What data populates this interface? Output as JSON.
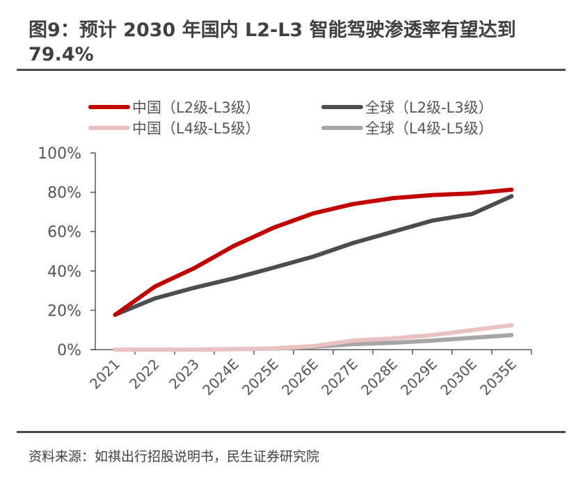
{
  "title": "图9：预计 2030 年国内 L2-L3 智能驾驶渗透率有望达到 79.4%",
  "source": "资料来源：如祺出行招股说明书，民生证券研究院",
  "colors": {
    "china_l2l3": "#C00000",
    "global_l2l3": "#4D4D4F",
    "china_l4l5": "#EBC0C1",
    "global_l4l5": "#A6A6A6",
    "axis": "#555555",
    "rule": "#4a4a4a"
  },
  "chart_data": {
    "type": "line",
    "title": "预计 2030 年国内 L2-L3 智能驾驶渗透率有望达到 79.4%",
    "xlabel": "",
    "ylabel": "",
    "categories": [
      "2021",
      "2022",
      "2023",
      "2024E",
      "2025E",
      "2026E",
      "2027E",
      "2028E",
      "2029E",
      "2030E",
      "2035E"
    ],
    "ylim": [
      0,
      100
    ],
    "yticks": [
      0,
      20,
      40,
      60,
      80,
      100
    ],
    "ytick_labels": [
      "0%",
      "20%",
      "40%",
      "60%",
      "80%",
      "100%"
    ],
    "grid": false,
    "legend_position": "top",
    "series": [
      {
        "name": "中国（L2级-L3级）",
        "color": "#C00000",
        "values": [
          17.7,
          32.0,
          41.5,
          52.8,
          62.0,
          69.3,
          74.0,
          77.0,
          78.6,
          79.4,
          81.3
        ]
      },
      {
        "name": "全球（L2级-L3级）",
        "color": "#4D4D4F",
        "values": [
          17.7,
          26.0,
          31.5,
          36.3,
          41.7,
          47.3,
          54.2,
          59.9,
          65.6,
          68.9,
          78.0
        ]
      },
      {
        "name": "中国（L4级-L5级）",
        "color": "#EBC0C1",
        "values": [
          0.0,
          0.0,
          0.0,
          0.2,
          0.6,
          1.8,
          4.6,
          5.7,
          7.4,
          9.9,
          12.4
        ]
      },
      {
        "name": "全球（L4级-L5级）",
        "color": "#A6A6A6",
        "values": [
          0.0,
          0.0,
          0.0,
          0.2,
          0.5,
          1.4,
          2.8,
          3.5,
          4.6,
          6.0,
          7.4
        ]
      }
    ]
  }
}
